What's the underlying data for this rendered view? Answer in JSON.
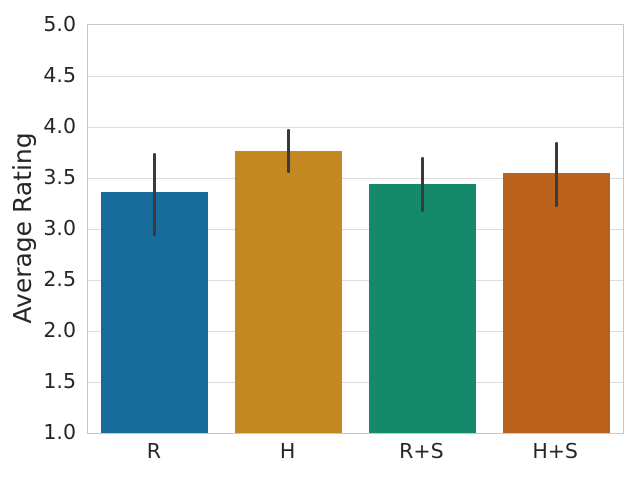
{
  "figure": {
    "background": "#ffffff",
    "grid_color": "#dcdcdc",
    "spine_color": "#c7c7c7",
    "text_color": "#262626"
  },
  "chart_data": {
    "type": "bar",
    "title": "",
    "xlabel": "",
    "ylabel": "Average Rating",
    "categories": [
      "R",
      "H",
      "R+S",
      "H+S"
    ],
    "values": [
      3.36,
      3.76,
      3.44,
      3.55
    ],
    "error_low": [
      2.93,
      3.55,
      3.17,
      3.22
    ],
    "error_high": [
      3.75,
      3.98,
      3.71,
      3.85
    ],
    "bar_colors": [
      "#176C9C",
      "#C38820",
      "#158A6A",
      "#BA611B"
    ],
    "error_bar_color": "#3A3A3A",
    "ylim": [
      1.0,
      5.0
    ],
    "ytick_labels": [
      "5.0",
      "4.5",
      "4.0",
      "3.5",
      "3.0",
      "2.5",
      "2.0",
      "1.5",
      "1.0"
    ],
    "grid": "horizontal",
    "legend": "none"
  }
}
